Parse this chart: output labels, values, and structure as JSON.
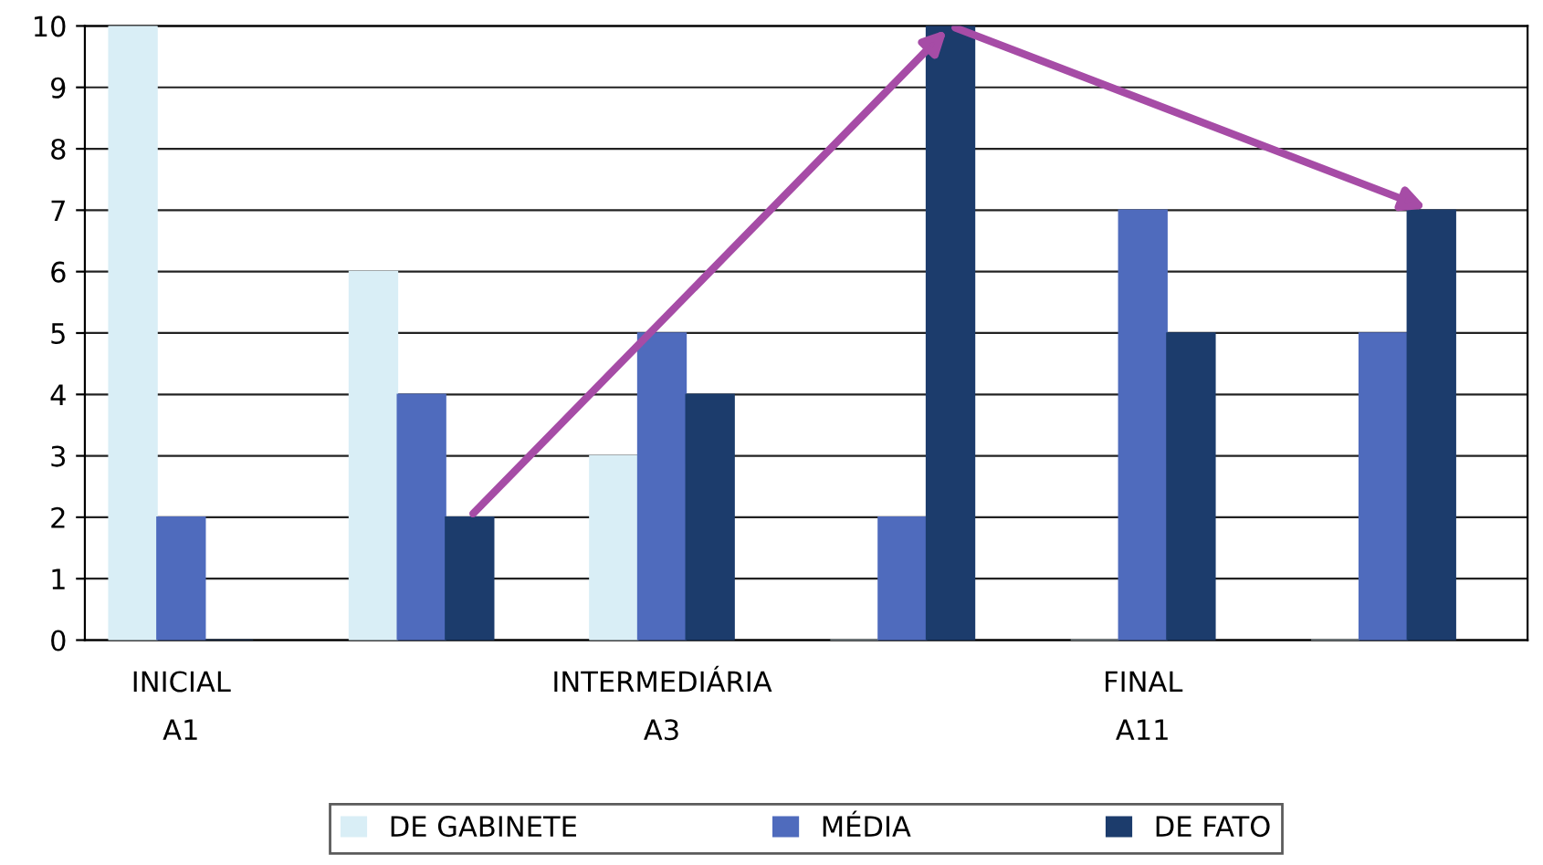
{
  "chart_data": {
    "type": "bar",
    "categories": [
      "INICIAL\nA1",
      null,
      "INTERMEDIÁRIA\nA3",
      null,
      "FINAL\nA11",
      null
    ],
    "series": [
      {
        "name": "DE GABINETE",
        "color": "#d9eef6",
        "values": [
          10,
          6,
          3,
          0,
          0,
          0
        ]
      },
      {
        "name": "MÉDIA",
        "color": "#4f6bbd",
        "values": [
          2,
          4,
          5,
          2,
          7,
          5
        ]
      },
      {
        "name": "DE FATO",
        "color": "#1c3c6c",
        "values": [
          0,
          2,
          4,
          10,
          5,
          7
        ]
      }
    ],
    "ylim": [
      0,
      10
    ],
    "yticks": [
      0,
      1,
      2,
      3,
      4,
      5,
      6,
      7,
      8,
      9,
      10
    ],
    "grid": "y",
    "legend": "bottom"
  }
}
